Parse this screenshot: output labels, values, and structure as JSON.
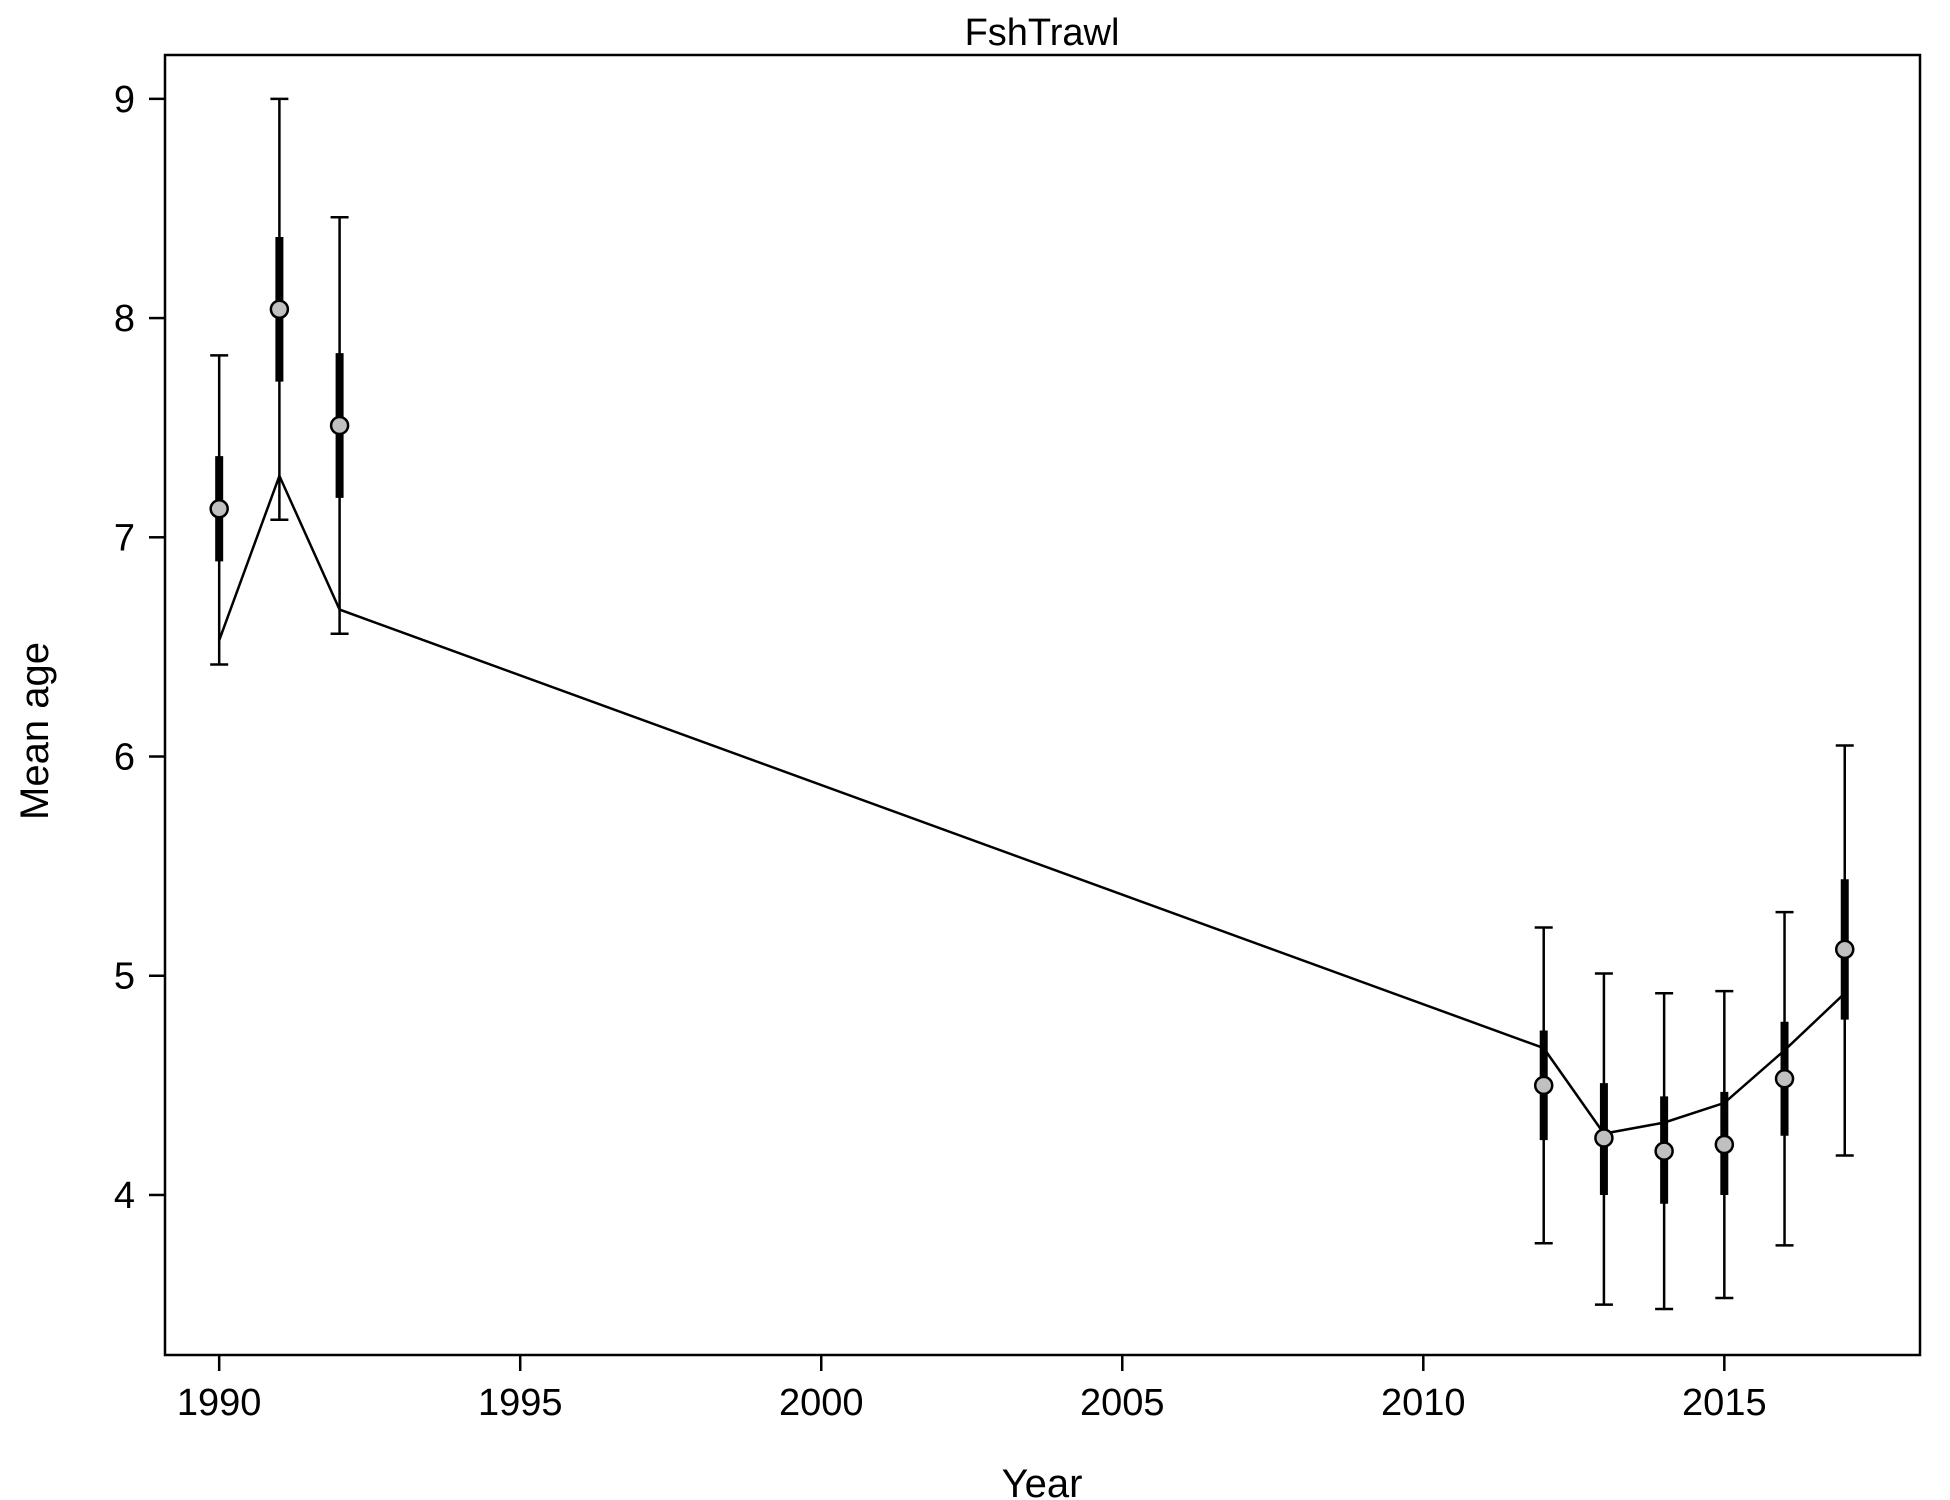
{
  "chart_data": {
    "type": "line",
    "title": "FshTrawl",
    "xlabel": "Year",
    "ylabel": "Mean age",
    "xlim": [
      1989.1,
      2018.25
    ],
    "ylim": [
      3.27,
      9.2
    ],
    "x_ticks": [
      "1990",
      "1995",
      "2000",
      "2005",
      "2010",
      "2015"
    ],
    "y_ticks": [
      "4",
      "5",
      "6",
      "7",
      "8",
      "9"
    ],
    "grid": false,
    "legend": "none",
    "series": [
      {
        "role": "observed",
        "marker": "circle",
        "marker_fill": "#c0c0c0",
        "points": [
          {
            "x": 1990,
            "y": 7.13,
            "lo": 6.42,
            "hi": 7.83,
            "lo_inner": 6.89,
            "hi_inner": 7.37
          },
          {
            "x": 1991,
            "y": 8.04,
            "lo": 7.08,
            "hi": 9.0,
            "lo_inner": 7.71,
            "hi_inner": 8.37
          },
          {
            "x": 1992,
            "y": 7.51,
            "lo": 6.56,
            "hi": 8.46,
            "lo_inner": 7.18,
            "hi_inner": 7.84
          },
          {
            "x": 2012,
            "y": 4.5,
            "lo": 3.78,
            "hi": 5.22,
            "lo_inner": 4.25,
            "hi_inner": 4.75
          },
          {
            "x": 2013,
            "y": 4.26,
            "lo": 3.5,
            "hi": 5.01,
            "lo_inner": 4.0,
            "hi_inner": 4.51
          },
          {
            "x": 2014,
            "y": 4.2,
            "lo": 3.48,
            "hi": 4.92,
            "lo_inner": 3.96,
            "hi_inner": 4.45
          },
          {
            "x": 2015,
            "y": 4.23,
            "lo": 3.53,
            "hi": 4.93,
            "lo_inner": 4.0,
            "hi_inner": 4.47
          },
          {
            "x": 2016,
            "y": 4.53,
            "lo": 3.77,
            "hi": 5.29,
            "lo_inner": 4.27,
            "hi_inner": 4.79
          },
          {
            "x": 2017,
            "y": 5.12,
            "lo": 4.18,
            "hi": 6.05,
            "lo_inner": 4.8,
            "hi_inner": 5.44
          }
        ]
      },
      {
        "role": "expected",
        "line_color": "#000000",
        "x": [
          1990,
          1991,
          1992,
          2012,
          2013,
          2014,
          2015,
          2016,
          2017
        ],
        "y": [
          6.53,
          7.28,
          6.67,
          4.67,
          4.28,
          4.33,
          4.42,
          4.66,
          4.92
        ]
      }
    ]
  }
}
